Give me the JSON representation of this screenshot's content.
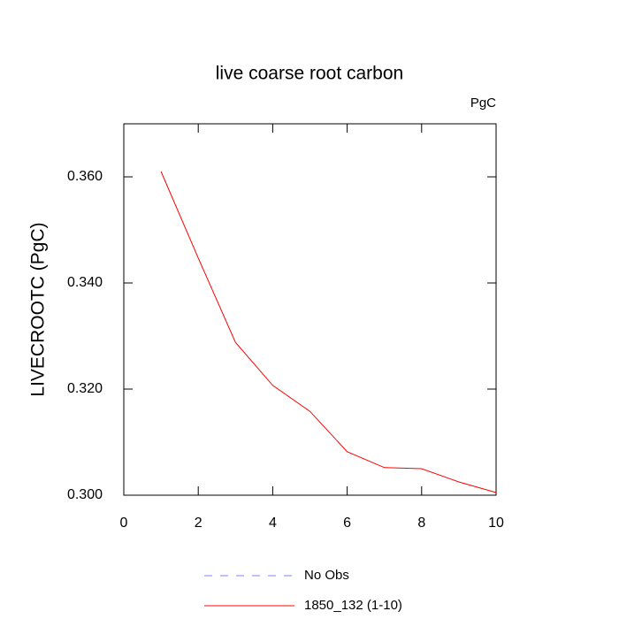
{
  "chart_data": {
    "type": "line",
    "title": "live coarse root carbon",
    "units": "PgC",
    "ylabel": "LIVECROOTC  (PgC)",
    "x": [
      1,
      2,
      3,
      4,
      5,
      6,
      7,
      8,
      9,
      10
    ],
    "series": [
      {
        "name": "No Obs",
        "color": "#8080ff",
        "dashed": true,
        "values": [
          null,
          null,
          null,
          null,
          null,
          null,
          null,
          null,
          null,
          null
        ]
      },
      {
        "name": "1850_132 (1-10)",
        "color": "#ff0000",
        "dashed": false,
        "values": [
          0.361,
          0.3447,
          0.3288,
          0.3207,
          0.3158,
          0.3082,
          0.3052,
          0.305,
          0.3025,
          0.3005
        ]
      }
    ],
    "xlim": [
      0,
      10
    ],
    "xticks": [
      0,
      2,
      4,
      6,
      8,
      10
    ],
    "ylim": [
      0.3,
      0.37
    ],
    "yticks": [
      {
        "value": 0.3,
        "label": "0.300"
      },
      {
        "value": 0.32,
        "label": "0.320"
      },
      {
        "value": 0.34,
        "label": "0.340"
      },
      {
        "value": 0.36,
        "label": "0.360"
      }
    ]
  }
}
